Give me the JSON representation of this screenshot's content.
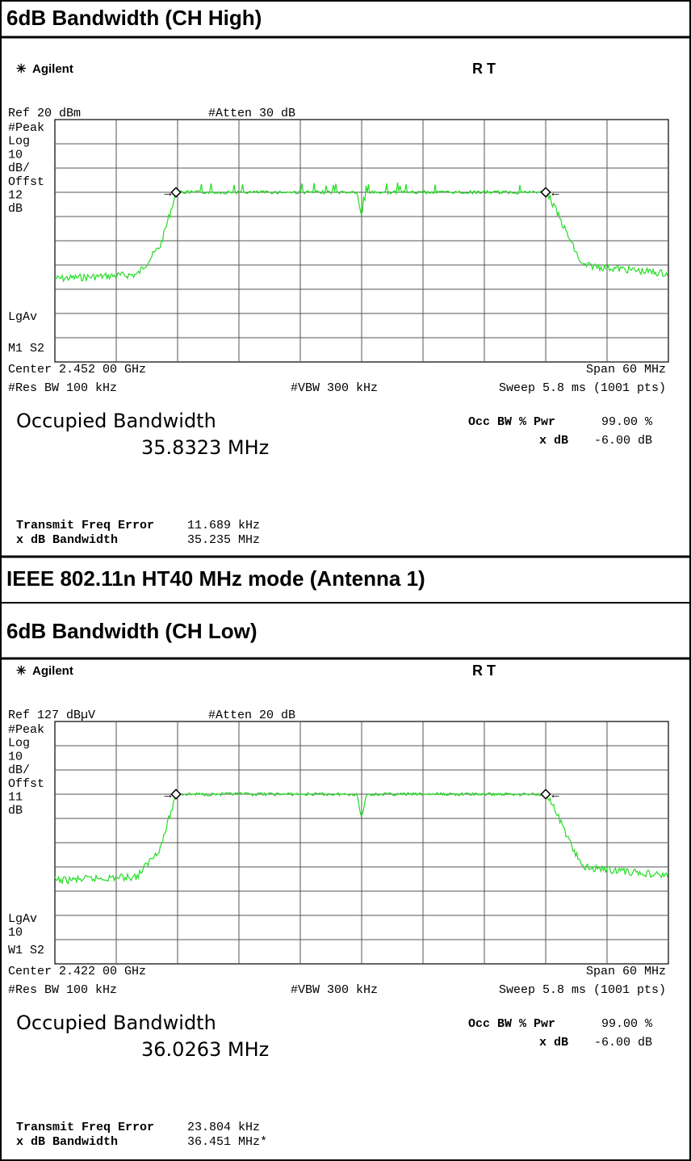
{
  "headings": [
    "6dB Bandwidth (CH High)",
    "IEEE 802.11n HT40 MHz  mode (Antenna 1)",
    "6dB Bandwidth (CH Low)"
  ],
  "screens": [
    {
      "brand": "Agilent",
      "status": "R  T",
      "ref": "Ref 20 dBm",
      "atten": "#Atten 30 dB",
      "upper_labels": [
        "#Peak",
        "Log",
        "10",
        "dB/",
        "Offst",
        "12",
        "dB"
      ],
      "lower_labels": [
        "LgAv",
        "M1  S2"
      ],
      "center": "Center 2.452 00 GHz",
      "span": "Span 60 MHz",
      "rbw": "#Res BW 100 kHz",
      "vbw": "#VBW 300 kHz",
      "sweep": "Sweep 5.8 ms (1001 pts)",
      "occ_title": "Occupied Bandwidth",
      "occ_value": "35.8323 MHz",
      "pwr_label": "Occ BW % Pwr",
      "pwr_value": "99.00 %",
      "xdb_label": "x dB",
      "xdb_value": "-6.00 dB",
      "err_label": "Transmit Freq Error",
      "err_value": "11.689 kHz",
      "bw_label": "x dB Bandwidth",
      "bw_value": "35.235 MHz"
    },
    {
      "brand": "Agilent",
      "status": "R  T",
      "ref": "Ref 127 dBµV",
      "atten": "#Atten 20 dB",
      "upper_labels": [
        "#Peak",
        "Log",
        "10",
        "dB/",
        "Offst",
        "11",
        "dB"
      ],
      "lower_labels": [
        "LgAv",
        "10",
        "W1  S2"
      ],
      "center": "Center 2.422 00 GHz",
      "span": "Span 60 MHz",
      "rbw": "#Res BW 100 kHz",
      "vbw": "#VBW 300 kHz",
      "sweep": "Sweep 5.8 ms (1001 pts)",
      "occ_title": "Occupied Bandwidth",
      "occ_value": "36.0263 MHz",
      "pwr_label": "Occ BW % Pwr",
      "pwr_value": "99.00 %",
      "xdb_label": "x dB",
      "xdb_value": "-6.00 dB",
      "err_label": "Transmit Freq Error",
      "err_value": "23.804 kHz",
      "bw_label": "x dB Bandwidth",
      "bw_value": "36.451 MHz*"
    }
  ]
}
